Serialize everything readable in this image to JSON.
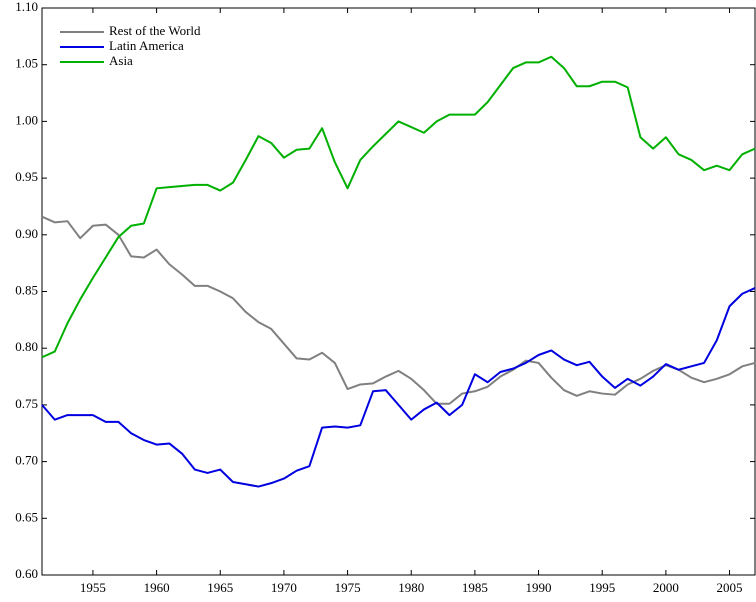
{
  "chart_data": {
    "type": "line",
    "x": [
      1951,
      1952,
      1953,
      1954,
      1955,
      1956,
      1957,
      1958,
      1959,
      1960,
      1961,
      1962,
      1963,
      1964,
      1965,
      1966,
      1967,
      1968,
      1969,
      1970,
      1971,
      1972,
      1973,
      1974,
      1975,
      1976,
      1977,
      1978,
      1979,
      1980,
      1981,
      1982,
      1983,
      1984,
      1985,
      1986,
      1987,
      1988,
      1989,
      1990,
      1991,
      1992,
      1993,
      1994,
      1995,
      1996,
      1997,
      1998,
      1999,
      2000,
      2001,
      2002,
      2003,
      2004,
      2005,
      2006,
      2007
    ],
    "series": [
      {
        "name": "Rest of the World",
        "color": "#808080",
        "values": [
          0.916,
          0.911,
          0.912,
          0.897,
          0.908,
          0.909,
          0.9,
          0.881,
          0.88,
          0.887,
          0.874,
          0.865,
          0.855,
          0.855,
          0.85,
          0.844,
          0.832,
          0.823,
          0.817,
          0.804,
          0.791,
          0.79,
          0.796,
          0.787,
          0.764,
          0.768,
          0.769,
          0.775,
          0.78,
          0.773,
          0.763,
          0.751,
          0.751,
          0.76,
          0.762,
          0.766,
          0.775,
          0.781,
          0.789,
          0.787,
          0.774,
          0.763,
          0.758,
          0.762,
          0.76,
          0.759,
          0.768,
          0.773,
          0.78,
          0.785,
          0.781,
          0.774,
          0.77,
          0.773,
          0.777,
          0.784,
          0.787
        ]
      },
      {
        "name": "Latin America",
        "color": "#0000e0",
        "values": [
          0.75,
          0.737,
          0.741,
          0.741,
          0.741,
          0.735,
          0.735,
          0.725,
          0.719,
          0.715,
          0.716,
          0.707,
          0.693,
          0.69,
          0.693,
          0.682,
          0.68,
          0.678,
          0.681,
          0.685,
          0.692,
          0.696,
          0.73,
          0.731,
          0.73,
          0.732,
          0.762,
          0.763,
          0.75,
          0.737,
          0.746,
          0.752,
          0.741,
          0.75,
          0.777,
          0.77,
          0.779,
          0.782,
          0.787,
          0.794,
          0.798,
          0.79,
          0.785,
          0.788,
          0.775,
          0.765,
          0.773,
          0.767,
          0.775,
          0.786,
          0.781,
          0.784,
          0.787,
          0.807,
          0.837,
          0.848,
          0.853
        ]
      },
      {
        "name": "Asia",
        "color": "#00b000",
        "values": [
          0.792,
          0.797,
          0.822,
          0.843,
          0.862,
          0.88,
          0.898,
          0.908,
          0.91,
          0.941,
          0.942,
          0.943,
          0.944,
          0.944,
          0.939,
          0.946,
          0.966,
          0.987,
          0.981,
          0.968,
          0.975,
          0.976,
          0.994,
          0.964,
          0.941,
          0.966,
          0.978,
          0.989,
          1.0,
          0.995,
          0.99,
          1.0,
          1.006,
          1.006,
          1.006,
          1.017,
          1.032,
          1.047,
          1.052,
          1.052,
          1.057,
          1.047,
          1.031,
          1.031,
          1.035,
          1.035,
          1.03,
          0.986,
          0.976,
          0.986,
          0.971,
          0.966,
          0.957,
          0.961,
          0.957,
          0.971,
          0.976
        ]
      }
    ],
    "xlim": [
      1951,
      2007
    ],
    "xticks": [
      1955,
      1960,
      1965,
      1970,
      1975,
      1980,
      1985,
      1990,
      1995,
      2000,
      2005
    ],
    "ylim": [
      0.6,
      1.1
    ],
    "yticks": [
      {
        "value": 0.6,
        "label": "0.60"
      },
      {
        "value": 0.65,
        "label": "0.65"
      },
      {
        "value": 0.7,
        "label": "0.70"
      },
      {
        "value": 0.75,
        "label": "0.75"
      },
      {
        "value": 0.8,
        "label": "0.80"
      },
      {
        "value": 0.85,
        "label": "0.85"
      },
      {
        "value": 0.9,
        "label": "0.90"
      },
      {
        "value": 0.95,
        "label": "0.95"
      },
      {
        "value": 1.0,
        "label": "1.00"
      },
      {
        "value": 1.05,
        "label": "1.05"
      },
      {
        "value": 1.1,
        "label": "1.10"
      }
    ],
    "legend": "upper left"
  }
}
